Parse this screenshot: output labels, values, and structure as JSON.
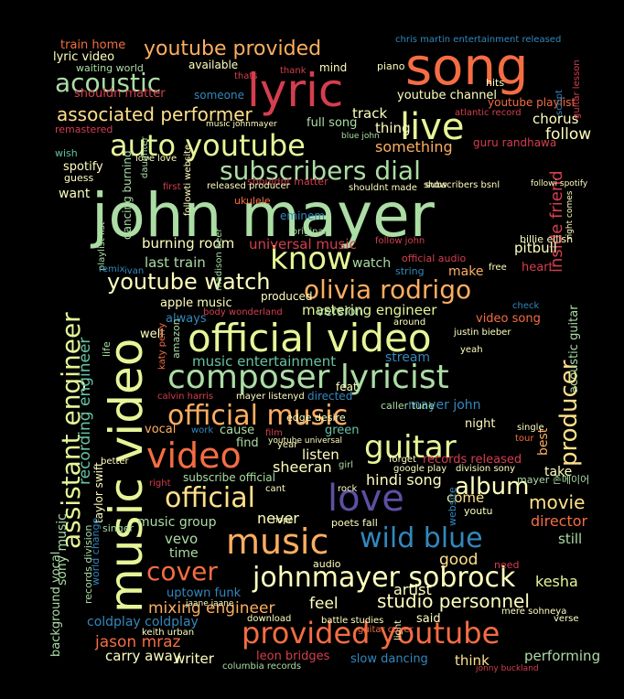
{
  "palette": {
    "red": "#d53e4f",
    "orange": "#f46d43",
    "light_orange": "#fdae61",
    "yellow": "#fee08b",
    "cream": "#ffffbf",
    "light_green": "#e6f598",
    "green": "#abdda4",
    "teal": "#66c2a5",
    "blue": "#3288bd",
    "purple": "#5e4fa2",
    "maroon": "#9e0142"
  },
  "words": [
    {
      "text": "john mayer",
      "color": "green"
    },
    {
      "text": "music video",
      "color": "light_green"
    },
    {
      "text": "song",
      "color": "orange"
    },
    {
      "text": "lyric",
      "color": "red"
    },
    {
      "text": "official video",
      "color": "light_green"
    },
    {
      "text": "composer lyricist",
      "color": "green"
    },
    {
      "text": "assistant engineer",
      "color": "light_green"
    },
    {
      "text": "provided youtube",
      "color": "orange"
    },
    {
      "text": "johnmayer sobrock",
      "color": "cream"
    },
    {
      "text": "auto youtube",
      "color": "light_green"
    },
    {
      "text": "subscribers dial",
      "color": "green"
    },
    {
      "text": "olivia rodrigo",
      "color": "light_orange"
    },
    {
      "text": "official music",
      "color": "light_orange"
    },
    {
      "text": "love",
      "color": "purple"
    },
    {
      "text": "guitar",
      "color": "light_green"
    },
    {
      "text": "video",
      "color": "orange"
    },
    {
      "text": "music",
      "color": "light_orange"
    },
    {
      "text": "official",
      "color": "yellow"
    },
    {
      "text": "wild blue",
      "color": "blue"
    },
    {
      "text": "live",
      "color": "light_green"
    },
    {
      "text": "know",
      "color": "light_green"
    },
    {
      "text": "producer",
      "color": "yellow"
    },
    {
      "text": "cover",
      "color": "orange"
    },
    {
      "text": "album",
      "color": "cream"
    },
    {
      "text": "youtube provided",
      "color": "light_orange"
    },
    {
      "text": "acoustic",
      "color": "green"
    },
    {
      "text": "youtube watch",
      "color": "cream"
    },
    {
      "text": "studio personnel",
      "color": "cream"
    },
    {
      "text": "recording engineer",
      "color": "teal"
    },
    {
      "text": "associated performer",
      "color": "yellow"
    },
    {
      "text": "movie",
      "color": "yellow"
    },
    {
      "text": "mixing engineer",
      "color": "light_orange"
    },
    {
      "text": "mastering engineer",
      "color": "light_green"
    },
    {
      "text": "music entertainment",
      "color": "teal"
    },
    {
      "text": "universal music",
      "color": "red"
    },
    {
      "text": "burning room",
      "color": "cream"
    },
    {
      "text": "last train",
      "color": "green"
    },
    {
      "text": "jason mraz",
      "color": "orange"
    },
    {
      "text": "hindi song",
      "color": "cream"
    },
    {
      "text": "sheeran",
      "color": "cream"
    },
    {
      "text": "feel",
      "color": "cream"
    },
    {
      "text": "artist",
      "color": "cream"
    },
    {
      "text": "kesha",
      "color": "light_green"
    },
    {
      "text": "inside friend",
      "color": "red"
    },
    {
      "text": "pitbull",
      "color": "cream"
    },
    {
      "text": "something",
      "color": "light_orange"
    },
    {
      "text": "follow",
      "color": "cream"
    },
    {
      "text": "chorus",
      "color": "cream"
    },
    {
      "text": "spotify",
      "color": "cream"
    },
    {
      "text": "youtube channel",
      "color": "cream"
    },
    {
      "text": "full song",
      "color": "green"
    },
    {
      "text": "track",
      "color": "cream"
    },
    {
      "text": "thing",
      "color": "cream"
    },
    {
      "text": "music group",
      "color": "green"
    },
    {
      "text": "vevo",
      "color": "green"
    },
    {
      "text": "time",
      "color": "green"
    },
    {
      "text": "never",
      "color": "cream"
    },
    {
      "text": "come",
      "color": "yellow"
    },
    {
      "text": "director",
      "color": "orange"
    },
    {
      "text": "still",
      "color": "green"
    },
    {
      "text": "good",
      "color": "yellow"
    },
    {
      "text": "carry away",
      "color": "cream"
    },
    {
      "text": "writer",
      "color": "cream"
    },
    {
      "text": "think",
      "color": "yellow"
    },
    {
      "text": "performing",
      "color": "green"
    },
    {
      "text": "slow dancing",
      "color": "blue"
    },
    {
      "text": "leon bridges",
      "color": "red"
    },
    {
      "text": "said",
      "color": "cream"
    },
    {
      "text": "coldplay coldplay",
      "color": "blue"
    },
    {
      "text": "uptown funk",
      "color": "blue"
    },
    {
      "text": "sony music",
      "color": "green"
    },
    {
      "text": "background vocal",
      "color": "green"
    },
    {
      "text": "records released",
      "color": "red"
    },
    {
      "text": "listen",
      "color": "cream"
    },
    {
      "text": "vocal",
      "color": "light_orange"
    },
    {
      "text": "cause",
      "color": "green"
    },
    {
      "text": "find",
      "color": "green"
    },
    {
      "text": "green",
      "color": "teal"
    },
    {
      "text": "mayer john",
      "color": "blue"
    },
    {
      "text": "night",
      "color": "cream"
    },
    {
      "text": "best",
      "color": "light_orange"
    },
    {
      "text": "take",
      "color": "cream"
    },
    {
      "text": "stream",
      "color": "blue"
    },
    {
      "text": "apple music",
      "color": "cream"
    },
    {
      "text": "produced",
      "color": "cream"
    },
    {
      "text": "version",
      "color": "green"
    },
    {
      "text": "always",
      "color": "blue"
    },
    {
      "text": "well",
      "color": "cream"
    },
    {
      "text": "want",
      "color": "cream"
    },
    {
      "text": "make",
      "color": "light_orange"
    },
    {
      "text": "watch",
      "color": "green"
    },
    {
      "text": "heart",
      "color": "red"
    },
    {
      "text": "video song",
      "color": "orange"
    },
    {
      "text": "acoustic guitar",
      "color": "green"
    },
    {
      "text": "eminem",
      "color": "blue"
    },
    {
      "text": "billie eilish",
      "color": "cream"
    },
    {
      "text": "shouldnt matter",
      "color": "red"
    },
    {
      "text": "shouldn matter",
      "color": "red"
    },
    {
      "text": "remastered",
      "color": "red"
    },
    {
      "text": "lyric video",
      "color": "cream"
    },
    {
      "text": "train home",
      "color": "orange"
    },
    {
      "text": "waiting world",
      "color": "green"
    },
    {
      "text": "available",
      "color": "cream"
    },
    {
      "text": "someone",
      "color": "blue"
    },
    {
      "text": "mind",
      "color": "cream"
    },
    {
      "text": "piano",
      "color": "cream"
    },
    {
      "text": "hits",
      "color": "cream"
    },
    {
      "text": "youtube playlist",
      "color": "orange"
    },
    {
      "text": "guru randhawa",
      "color": "red"
    },
    {
      "text": "wish",
      "color": "teal"
    },
    {
      "text": "guess",
      "color": "cream"
    },
    {
      "text": "dancing burning",
      "color": "green"
    },
    {
      "text": "ukulele",
      "color": "orange"
    },
    {
      "text": "feat",
      "color": "cream"
    },
    {
      "text": "directed",
      "color": "blue"
    },
    {
      "text": "caller tune",
      "color": "green"
    },
    {
      "text": "singer",
      "color": "green"
    },
    {
      "text": "taylor swift",
      "color": "cream"
    },
    {
      "text": "world change",
      "color": "blue"
    },
    {
      "text": "records division",
      "color": "green"
    },
    {
      "text": "life",
      "color": "green"
    },
    {
      "text": "amazon",
      "color": "green"
    },
    {
      "text": "katy perry",
      "color": "orange"
    },
    {
      "text": "calvin harris",
      "color": "red"
    },
    {
      "text": "mayer listenyd",
      "color": "cream"
    },
    {
      "text": "justin bieber",
      "color": "cream"
    },
    {
      "text": "yeah",
      "color": "cream"
    },
    {
      "text": "around",
      "color": "cream"
    },
    {
      "text": "check",
      "color": "blue"
    },
    {
      "text": "free",
      "color": "cream"
    },
    {
      "text": "subscribe official",
      "color": "green"
    },
    {
      "text": "edge desire",
      "color": "cream"
    },
    {
      "text": "google play",
      "color": "cream"
    },
    {
      "text": "division sony",
      "color": "cream"
    },
    {
      "text": "tour",
      "color": "orange"
    },
    {
      "text": "single",
      "color": "cream"
    },
    {
      "text": "forget",
      "color": "cream"
    },
    {
      "text": "website",
      "color": "blue"
    },
    {
      "text": "youtu",
      "color": "cream"
    },
    {
      "text": "poets fall",
      "color": "cream"
    },
    {
      "text": "need",
      "color": "red"
    },
    {
      "text": "light",
      "color": "cream"
    },
    {
      "text": "verse",
      "color": "cream"
    },
    {
      "text": "download",
      "color": "cream"
    },
    {
      "text": "battle studies",
      "color": "cream"
    },
    {
      "text": "columbia records",
      "color": "green"
    },
    {
      "text": "keith urban",
      "color": "cream"
    },
    {
      "text": "mere sohneya",
      "color": "cream"
    },
    {
      "text": "jaane jaane",
      "color": "cream"
    },
    {
      "text": "guitar cover",
      "color": "orange"
    },
    {
      "text": "audio",
      "color": "cream"
    },
    {
      "text": "official audio",
      "color": "red"
    },
    {
      "text": "string",
      "color": "blue"
    },
    {
      "text": "follow john",
      "color": "red"
    },
    {
      "text": "original",
      "color": "green"
    },
    {
      "text": "released producer",
      "color": "cream"
    },
    {
      "text": "first",
      "color": "red"
    },
    {
      "text": "followti website",
      "color": "cream"
    },
    {
      "text": "love love",
      "color": "cream"
    },
    {
      "text": "daughter",
      "color": "green"
    },
    {
      "text": "playlist list",
      "color": "green"
    },
    {
      "text": "remix",
      "color": "blue"
    },
    {
      "text": "ivan",
      "color": "blue"
    },
    {
      "text": "madison beer",
      "color": "green"
    },
    {
      "text": "body wonderland",
      "color": "red"
    },
    {
      "text": "film",
      "color": "red"
    },
    {
      "text": "year",
      "color": "cream"
    },
    {
      "text": "youtube universal",
      "color": "cream"
    },
    {
      "text": "girl",
      "color": "green"
    },
    {
      "text": "work",
      "color": "blue"
    },
    {
      "text": "better",
      "color": "cream"
    },
    {
      "text": "right",
      "color": "red"
    },
    {
      "text": "cant",
      "color": "cream"
    },
    {
      "text": "rock",
      "color": "cream"
    },
    {
      "text": "hope",
      "color": "cream"
    },
    {
      "text": "mayer 존메이어",
      "color": "green"
    },
    {
      "text": "chris martin entertainment released",
      "color": "blue"
    },
    {
      "text": "atlantic record",
      "color": "red"
    },
    {
      "text": "guitar lesson",
      "color": "red"
    },
    {
      "text": "thats",
      "color": "red"
    },
    {
      "text": "thank",
      "color": "red"
    },
    {
      "text": "music johnmayer",
      "color": "cream"
    },
    {
      "text": "blue john",
      "color": "green"
    },
    {
      "text": "show",
      "color": "cream"
    },
    {
      "text": "shouldnt made",
      "color": "cream"
    },
    {
      "text": "subscribers bsnl",
      "color": "cream"
    },
    {
      "text": "followi spotify",
      "color": "cream"
    },
    {
      "text": "script",
      "color": "blue"
    },
    {
      "text": "right comes",
      "color": "cream"
    },
    {
      "text": "jonny buckland",
      "color": "red"
    }
  ]
}
